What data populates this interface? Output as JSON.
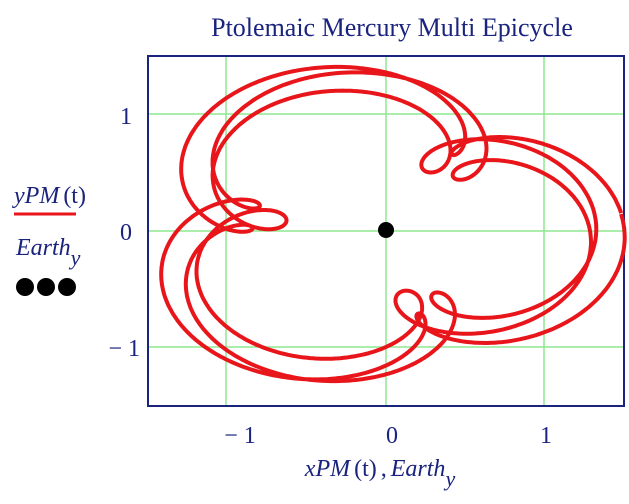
{
  "chart_data": {
    "type": "line",
    "title": "Ptolemaic Mercury Multi Epicycle",
    "xlabel": {
      "main": "xPM",
      "arg": "(t)",
      "sep": ",",
      "extra": "Earth",
      "sub": "y"
    },
    "ylabel": {
      "series_label": {
        "main": "yPM",
        "arg": "(t)"
      },
      "marker_label": {
        "main": "Earth",
        "sub": "y"
      }
    },
    "x_ticks": [
      "− 1",
      "0",
      "1"
    ],
    "y_ticks": [
      "1",
      "0",
      "− 1"
    ],
    "xlim": [
      -1.5,
      1.5
    ],
    "ylim": [
      -1.5,
      1.5
    ],
    "grid": true,
    "colors": {
      "curve": "#e8161b",
      "grid": "#8fe88f",
      "frame": "#1a237e",
      "text": "#1a237e",
      "marker": "#000000"
    },
    "series": [
      {
        "name": "yPM(t)",
        "description": "epicyclic path traced by Mercury over time",
        "role": "curve"
      },
      {
        "name": "Earth",
        "role": "point",
        "x": [
          -0.04
        ],
        "y": [
          0.0
        ]
      }
    ]
  }
}
